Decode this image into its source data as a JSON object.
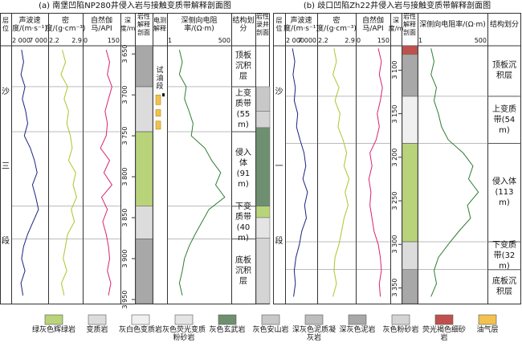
{
  "panels": [
    {
      "title": "(a) 南堡凹陷NP280井侵入岩与接触变质带解释剖面图",
      "columns": {
        "strat": "层位",
        "sonic": "声波速度/(m·s⁻¹)",
        "density": "密度/(g·cm⁻³)",
        "gamma": "自然伽马/API",
        "depth": "深度/m",
        "lith": "岩性解释剖面",
        "elec": "电测解释",
        "res": "深侧向电阻率/(Ω·m)",
        "zone": "结构划分",
        "lithlog": "岩性录井剖面"
      },
      "sonic_lim": [
        {
          "value": 2000,
          "label": "2 000"
        },
        {
          "value": 7000,
          "label": "7 000"
        }
      ],
      "density_lim": [
        2.2,
        2.9
      ],
      "gamma_lim": [
        0,
        150
      ],
      "res_lim": [
        1,
        500
      ],
      "res_log": true,
      "depth_lim": [
        3640,
        3955
      ],
      "depth_ticks": [
        {
          "value": 3650,
          "label": "3 650"
        },
        {
          "value": 3700,
          "label": "3 700"
        },
        {
          "value": 3750,
          "label": "3 750"
        },
        {
          "value": 3800,
          "label": "3 800"
        },
        {
          "value": 3850,
          "label": "3 850"
        },
        {
          "value": 3900,
          "label": "3 900"
        },
        {
          "value": 3950,
          "label": "3 950"
        }
      ],
      "strat": [
        "沙",
        "三",
        "段"
      ],
      "depth": [
        3645,
        3660,
        3675,
        3690,
        3705,
        3720,
        3735,
        3750,
        3765,
        3780,
        3795,
        3810,
        3825,
        3840,
        3855,
        3870,
        3885,
        3900,
        3915,
        3930,
        3945
      ],
      "sonic": [
        3300,
        3600,
        3200,
        3800,
        3400,
        3900,
        4200,
        3700,
        4600,
        5200,
        5600,
        4900,
        5400,
        5800,
        5000,
        4200,
        3600,
        3300,
        3800,
        3200,
        3500
      ],
      "density": [
        2.48,
        2.55,
        2.45,
        2.6,
        2.52,
        2.62,
        2.58,
        2.66,
        2.7,
        2.62,
        2.78,
        2.72,
        2.8,
        2.68,
        2.75,
        2.6,
        2.55,
        2.5,
        2.58,
        2.46,
        2.52
      ],
      "gamma": [
        95,
        110,
        100,
        120,
        105,
        90,
        100,
        95,
        70,
        110,
        85,
        120,
        75,
        100,
        80,
        95,
        105,
        110,
        100,
        115,
        105
      ],
      "resistivity": [
        3,
        4,
        3,
        6,
        5,
        8,
        12,
        10,
        40,
        80,
        200,
        120,
        300,
        60,
        30,
        15,
        8,
        5,
        4,
        3,
        4
      ],
      "zones": [
        {
          "label": "顶板沉积层",
          "top": 3640,
          "bottom": 3690
        },
        {
          "label": "上变质带(55 m)",
          "top": 3690,
          "bottom": 3745
        },
        {
          "label": "侵入体(91 m)",
          "top": 3745,
          "bottom": 3836
        },
        {
          "label": "下变质带(40 m)",
          "top": 3836,
          "bottom": 3876
        },
        {
          "label": "底板沉积层",
          "top": 3876,
          "bottom": 3955
        }
      ],
      "lith": [
        {
          "top": 3640,
          "bottom": 3690,
          "rock": 7
        },
        {
          "top": 3690,
          "bottom": 3745,
          "rock": 1
        },
        {
          "top": 3745,
          "bottom": 3836,
          "rock": 0
        },
        {
          "top": 3836,
          "bottom": 3876,
          "rock": 1
        },
        {
          "top": 3876,
          "bottom": 3955,
          "rock": 7
        }
      ],
      "lithlog": [
        {
          "top": 3690,
          "bottom": 3720,
          "rock": 5
        },
        {
          "top": 3720,
          "bottom": 3740,
          "rock": 8
        },
        {
          "top": 3740,
          "bottom": 3836,
          "rock": 4
        },
        {
          "top": 3836,
          "bottom": 3850,
          "rock": 0
        },
        {
          "top": 3850,
          "bottom": 3875,
          "rock": 3
        },
        {
          "top": 3875,
          "bottom": 3955,
          "rock": 8
        }
      ],
      "oil": [
        {
          "top": 3700,
          "bottom": 3712
        },
        {
          "top": 3718,
          "bottom": 3726
        },
        {
          "top": 3732,
          "bottom": 3742
        }
      ],
      "test": {
        "label": "试油段",
        "top": 3662,
        "bottom": 3698
      }
    },
    {
      "title": "(b) 歧口凹陷Zh22井侵入岩与接触变质带解释剖面图",
      "columns": {
        "strat": "层位",
        "sonic": "声波速度/(m·s⁻¹)",
        "density": "密度/(g·cm⁻³)",
        "gamma": "自然伽马/API",
        "depth": "深度/m",
        "lith": "岩性解释剖面",
        "res": "深侧向电阻率/(Ω·m)",
        "zone": "结构划分"
      },
      "sonic_lim": [
        {
          "value": 2000,
          "label": "2 000"
        },
        {
          "value": 7000,
          "label": "7 000"
        }
      ],
      "density_lim": [
        2.2,
        2.9
      ],
      "gamma_lim": [
        0,
        150
      ],
      "res_lim": [
        1,
        500
      ],
      "res_log": true,
      "depth_lim": [
        3072,
        3368
      ],
      "depth_ticks": [
        {
          "value": 3100,
          "label": "3 100"
        },
        {
          "value": 3150,
          "label": "3 150"
        },
        {
          "value": 3200,
          "label": "3 200"
        },
        {
          "value": 3250,
          "label": "3 250"
        },
        {
          "value": 3300,
          "label": "3 300"
        },
        {
          "value": 3350,
          "label": "3 350"
        }
      ],
      "strat": [
        "沙",
        "一",
        "段"
      ],
      "depth": [
        3075,
        3090,
        3105,
        3120,
        3135,
        3150,
        3165,
        3180,
        3195,
        3210,
        3225,
        3240,
        3255,
        3270,
        3285,
        3300,
        3315,
        3330,
        3345,
        3360
      ],
      "sonic": [
        3000,
        3400,
        3100,
        3500,
        3300,
        3900,
        3700,
        4300,
        5000,
        5300,
        4800,
        5600,
        5100,
        5400,
        4600,
        4200,
        3600,
        3300,
        3500,
        3200
      ],
      "density": [
        2.5,
        2.55,
        2.48,
        2.6,
        2.52,
        2.62,
        2.58,
        2.68,
        2.75,
        2.7,
        2.8,
        2.72,
        2.78,
        2.7,
        2.65,
        2.6,
        2.52,
        2.5,
        2.55,
        2.48
      ],
      "gamma": [
        100,
        115,
        105,
        120,
        110,
        95,
        105,
        90,
        60,
        70,
        55,
        65,
        60,
        70,
        80,
        100,
        110,
        115,
        105,
        110
      ],
      "resistivity": [
        3,
        4,
        3,
        5,
        4,
        6,
        8,
        15,
        60,
        150,
        100,
        250,
        90,
        120,
        40,
        15,
        6,
        4,
        5,
        3
      ],
      "zones": [
        {
          "label": "顶板沉积层",
          "top": 3072,
          "bottom": 3130
        },
        {
          "label": "上变质带(54 m)",
          "top": 3130,
          "bottom": 3184
        },
        {
          "label": "侵入体(113 m)",
          "top": 3184,
          "bottom": 3297
        },
        {
          "label": "下变质带(32 m)",
          "top": 3297,
          "bottom": 3329
        },
        {
          "label": "底板沉积层",
          "top": 3329,
          "bottom": 3368
        }
      ],
      "lith": [
        {
          "top": 3072,
          "bottom": 3082,
          "rock": 9
        },
        {
          "top": 3082,
          "bottom": 3130,
          "rock": 7
        },
        {
          "top": 3130,
          "bottom": 3184,
          "rock": 2
        },
        {
          "top": 3184,
          "bottom": 3297,
          "rock": 0
        },
        {
          "top": 3297,
          "bottom": 3329,
          "rock": 1
        },
        {
          "top": 3329,
          "bottom": 3368,
          "rock": 7
        }
      ]
    }
  ],
  "colors": {
    "sonic": "#1a237e",
    "density": "#a6c82a",
    "gamma": "#d6246e",
    "resistivity": "#2e7d32"
  },
  "legend": [
    {
      "label": "绿灰色辉绿岩",
      "color": "#b9d37a"
    },
    {
      "label": "变质岩",
      "color": "#dcdcdc"
    },
    {
      "label": "灰白色变质岩",
      "color": "#f0f0f0"
    },
    {
      "label": "灰色荧光变质粉砂岩",
      "color": "#e4e4e4"
    },
    {
      "label": "灰色玄武岩",
      "color": "#6f9070"
    },
    {
      "label": "灰色安山岩",
      "color": "#c8c8c8"
    },
    {
      "label": "深灰色泥质凝灰岩",
      "color": "#bdbdbd"
    },
    {
      "label": "深灰色泥岩",
      "color": "#a8a8a8"
    },
    {
      "label": "灰色粉砂岩",
      "color": "#d4d4d4"
    },
    {
      "label": "荧光褐色细砂岩",
      "color": "#c0504d"
    },
    {
      "label": "油气层",
      "color": "#f2c14e"
    }
  ]
}
